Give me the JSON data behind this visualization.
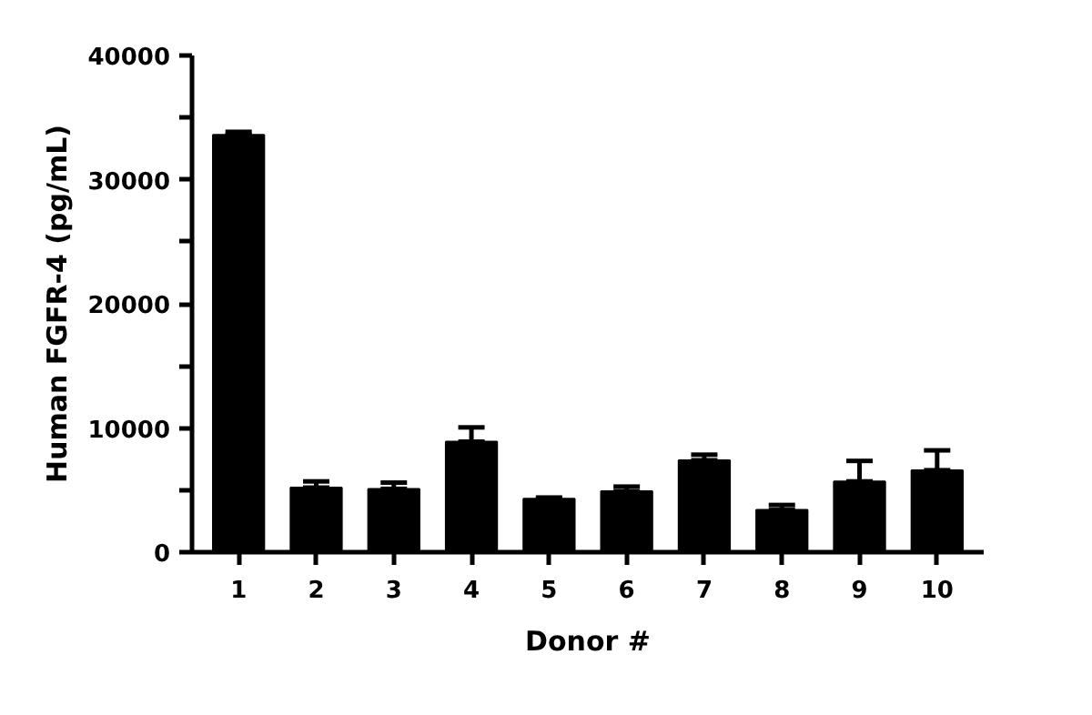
{
  "chart_data": {
    "type": "bar",
    "xlabel": "Donor #",
    "ylabel": "Human FGFR-4 (pg/mL)",
    "categories": [
      "1",
      "2",
      "3",
      "4",
      "5",
      "6",
      "7",
      "8",
      "9",
      "10"
    ],
    "values": [
      33600,
      5200,
      5100,
      8900,
      4300,
      4900,
      7400,
      3400,
      5700,
      6600
    ],
    "errors": [
      [
        33600,
        33850
      ],
      [
        5200,
        5700
      ],
      [
        5100,
        5600
      ],
      [
        8900,
        10050
      ],
      [
        4300,
        4400
      ],
      [
        4900,
        5280
      ],
      [
        7400,
        7850
      ],
      [
        3400,
        3800
      ],
      [
        5700,
        7350
      ],
      [
        6600,
        8200
      ]
    ],
    "color": "#000000",
    "ylim": [
      0,
      40000
    ],
    "yticks": [
      0,
      {
        "value": 5000,
        "label": null
      },
      10000,
      {
        "value": 15000,
        "label": null
      },
      20000,
      {
        "value": 25000,
        "label": null
      },
      30000,
      {
        "value": 35000,
        "label": null
      },
      40000
    ],
    "grid": false
  }
}
